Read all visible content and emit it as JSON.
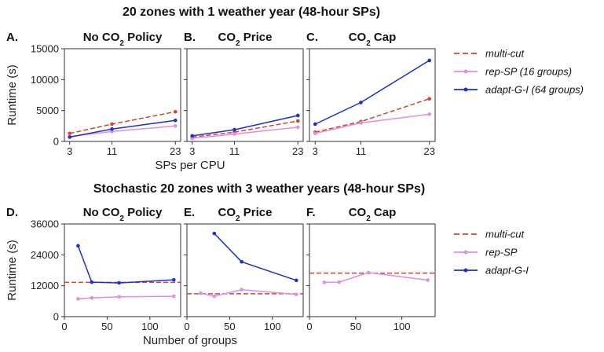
{
  "figure": {
    "row_titles": [
      "20 zones with 1 weather year (48-hour SPs)",
      "Stochastic 20 zones with 3 weather years (48-hour SPs)"
    ]
  },
  "colors": {
    "multi_cut": "#e0402a",
    "rep_sp": "#e08ee0",
    "adapt_g_i": "#1a2fd6"
  },
  "chart_data": [
    {
      "type": "line",
      "letter": "A.",
      "title": "No CO2 Policy",
      "title_main": "No CO",
      "title_sub": "2",
      "title_tail": " Policy",
      "xlabel": "",
      "ylabel": "Runtime (s)",
      "xticks": [
        3,
        11,
        23
      ],
      "xlim": [
        2,
        24
      ],
      "yticks": [
        0,
        5000,
        10000,
        15000
      ],
      "ylim": [
        0,
        15000
      ],
      "legend": "right",
      "series": [
        {
          "name": "multi-cut",
          "x": [
            3,
            11,
            23
          ],
          "y": [
            1300,
            2800,
            4800
          ]
        },
        {
          "name": "rep-SP (16 groups)",
          "x": [
            3,
            11,
            23
          ],
          "y": [
            800,
            1600,
            2500
          ]
        },
        {
          "name": "adapt-G-I (64 groups)",
          "x": [
            3,
            11,
            23
          ],
          "y": [
            700,
            2000,
            3400
          ]
        }
      ]
    },
    {
      "type": "line",
      "letter": "B.",
      "title": "CO2 Price",
      "title_main": "CO",
      "title_sub": "2",
      "title_tail": " Price",
      "xlabel": "SPs per CPU",
      "ylabel": "",
      "xticks": [
        3,
        11,
        23
      ],
      "xlim": [
        2,
        24
      ],
      "yticks": [
        0,
        5000,
        10000,
        15000
      ],
      "ylim": [
        0,
        15000
      ],
      "series": [
        {
          "name": "multi-cut",
          "x": [
            3,
            11,
            23
          ],
          "y": [
            700,
            1500,
            3300
          ]
        },
        {
          "name": "rep-SP (16 groups)",
          "x": [
            3,
            11,
            23
          ],
          "y": [
            500,
            1200,
            2300
          ]
        },
        {
          "name": "adapt-G-I (64 groups)",
          "x": [
            3,
            11,
            23
          ],
          "y": [
            900,
            1900,
            4200
          ]
        }
      ]
    },
    {
      "type": "line",
      "letter": "C.",
      "title": "CO2 Cap",
      "title_main": "CO",
      "title_sub": "2",
      "title_tail": " Cap",
      "xlabel": "",
      "ylabel": "",
      "xticks": [
        3,
        11,
        23
      ],
      "xlim": [
        2,
        24
      ],
      "yticks": [
        0,
        5000,
        10000,
        15000
      ],
      "ylim": [
        0,
        15000
      ],
      "series": [
        {
          "name": "multi-cut",
          "x": [
            3,
            11,
            23
          ],
          "y": [
            1500,
            3200,
            6900
          ]
        },
        {
          "name": "rep-SP (16 groups)",
          "x": [
            3,
            11,
            23
          ],
          "y": [
            1300,
            3000,
            4400
          ]
        },
        {
          "name": "adapt-G-I (64 groups)",
          "x": [
            3,
            11,
            23
          ],
          "y": [
            2800,
            6300,
            13100
          ]
        }
      ]
    },
    {
      "type": "line",
      "letter": "D.",
      "title": "No CO2 Policy",
      "title_main": "No CO",
      "title_sub": "2",
      "title_tail": " Policy",
      "xlabel": "",
      "ylabel": "Runtime (s)",
      "xticks": [
        0,
        50,
        100
      ],
      "xlim": [
        0,
        136
      ],
      "yticks": [
        0,
        12000,
        24000,
        36000
      ],
      "ylim": [
        0,
        36000
      ],
      "legend": "right",
      "series": [
        {
          "name": "multi-cut",
          "style": "hline",
          "y": 13300
        },
        {
          "name": "rep-SP",
          "x": [
            16,
            32,
            64,
            128
          ],
          "y": [
            6900,
            7300,
            7700,
            7900
          ]
        },
        {
          "name": "adapt-G-I",
          "x": [
            16,
            32,
            64,
            128
          ],
          "y": [
            27500,
            13400,
            13100,
            14300
          ]
        }
      ]
    },
    {
      "type": "line",
      "letter": "E.",
      "title": "CO2 Price",
      "title_main": "CO",
      "title_sub": "2",
      "title_tail": " Price",
      "xlabel": "Number of groups",
      "ylabel": "",
      "xticks": [
        0,
        50,
        100
      ],
      "xlim": [
        0,
        136
      ],
      "yticks": [
        0,
        12000,
        24000,
        36000
      ],
      "ylim": [
        0,
        36000
      ],
      "series": [
        {
          "name": "multi-cut",
          "style": "hline",
          "y": 8900
        },
        {
          "name": "rep-SP",
          "x": [
            16,
            32,
            64,
            128
          ],
          "y": [
            9100,
            7900,
            10500,
            8600
          ]
        },
        {
          "name": "adapt-G-I",
          "x": [
            32,
            64,
            128
          ],
          "y": [
            32300,
            21300,
            14100
          ]
        }
      ]
    },
    {
      "type": "line",
      "letter": "F.",
      "title": "CO2 Cap",
      "title_main": "CO",
      "title_sub": "2",
      "title_tail": " Cap",
      "xlabel": "",
      "ylabel": "",
      "xticks": [
        0,
        50,
        100
      ],
      "xlim": [
        0,
        136
      ],
      "yticks": [
        0,
        12000,
        24000,
        36000
      ],
      "ylim": [
        0,
        36000
      ],
      "series": [
        {
          "name": "multi-cut",
          "style": "hline",
          "y": 16900
        },
        {
          "name": "rep-SP",
          "x": [
            16,
            32,
            64,
            128
          ],
          "y": [
            13300,
            13400,
            17100,
            14200
          ]
        }
      ]
    }
  ],
  "legends": [
    {
      "items": [
        "multi-cut",
        "rep-SP (16 groups)",
        "adapt-G-I (64 groups)"
      ]
    },
    {
      "items": [
        "multi-cut",
        "rep-SP",
        "adapt-G-I"
      ]
    }
  ]
}
